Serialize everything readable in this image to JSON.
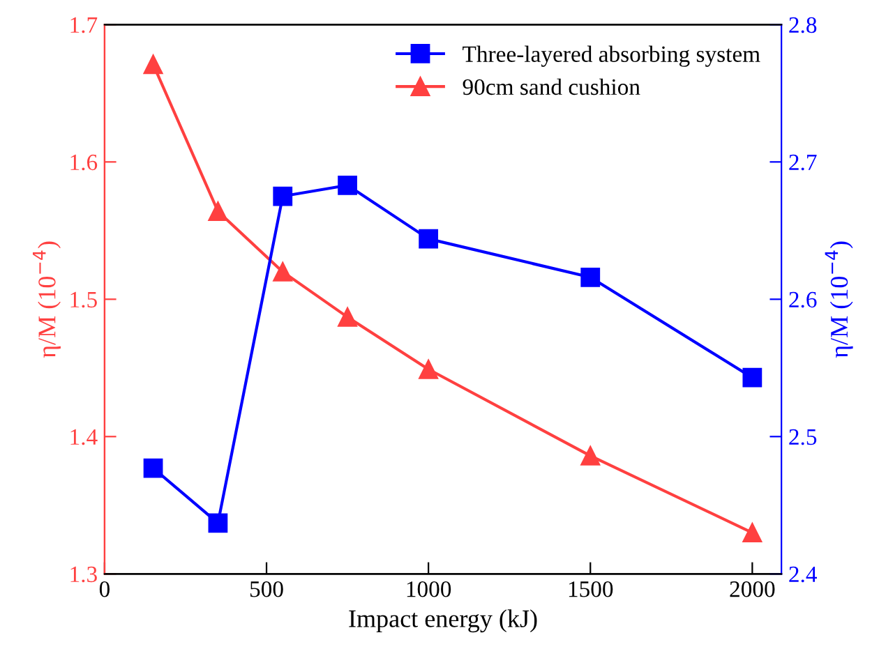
{
  "chart_data": {
    "type": "line",
    "xlabel": "Impact energy (kJ)",
    "ylabel": "η/M (10$^{−4}$)",
    "y2label": "η/M (10$^{−4}$)",
    "x": [
      150,
      350,
      550,
      750,
      1000,
      1500,
      2000
    ],
    "series": [
      {
        "name": "Three-layered absorbing system",
        "color": "#0000ff",
        "axis": "y2",
        "marker": "square",
        "values": [
          2.477,
          2.437,
          2.675,
          2.683,
          2.644,
          2.616,
          2.543
        ]
      },
      {
        "name": "90cm sand cushion",
        "color": "#ff4040",
        "marker": "triangle",
        "values": [
          1.671,
          1.564,
          1.52,
          1.487,
          1.449,
          1.386,
          1.33
        ]
      }
    ],
    "xlim": [
      0,
      2090
    ],
    "xticks": [
      0,
      500,
      1000,
      1500,
      2000
    ],
    "ylim": [
      1.3,
      1.7
    ],
    "yticks": [
      1.3,
      1.4,
      1.5,
      1.6,
      1.7
    ],
    "y2lim": [
      2.4,
      2.8
    ],
    "y2ticks": [
      2.4,
      2.5,
      2.6,
      2.7,
      2.8
    ],
    "grid": false,
    "legend": "top right",
    "line_style": "solid"
  }
}
